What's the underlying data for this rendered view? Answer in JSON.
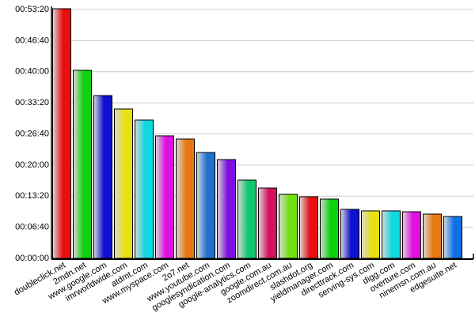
{
  "chart_data": {
    "type": "bar",
    "categories": [
      "doubleclick.net",
      "2mdn.net",
      "www.google.com",
      "imrworldwide.com",
      "atdmt.com",
      "www.myspace.com",
      "2o7.net",
      "www.youtube.com",
      "googlesyndication.com",
      "google-analytics.com",
      "google.com.au",
      "zoomdirect.com.au",
      "slashdot.org",
      "yieldmanager.com",
      "directtrack.com",
      "serving-sys.com",
      "digg.com",
      "overture.com",
      "ninemsn.com.au",
      "edgesuite.net"
    ],
    "values": [
      3210,
      2418,
      2093,
      1920,
      1778,
      1575,
      1534,
      1361,
      1270,
      1006,
      904,
      823,
      792,
      762,
      630,
      610,
      610,
      599,
      569,
      538
    ],
    "colors": [
      "#e81010",
      "#10d010",
      "#1010d0",
      "#e8e010",
      "#10d8e0",
      "#e010e0",
      "#e87810",
      "#2070d0",
      "#8010e0",
      "#10c870",
      "#d81060",
      "#70e010",
      "#e81010",
      "#10d010",
      "#1010d0",
      "#e8e010",
      "#10d8e0",
      "#e010e0",
      "#e87810",
      "#1070e8"
    ],
    "ylim": [
      0,
      3200
    ],
    "yticks": [
      {
        "value": 0,
        "label": "00:00:00"
      },
      {
        "value": 400,
        "label": "00:06:40"
      },
      {
        "value": 800,
        "label": "00:13:20"
      },
      {
        "value": 1200,
        "label": "00:20:00"
      },
      {
        "value": 1600,
        "label": "00:26:40"
      },
      {
        "value": 2000,
        "label": "00:33:20"
      },
      {
        "value": 2400,
        "label": "00:40:00"
      },
      {
        "value": 2800,
        "label": "00:46:40"
      },
      {
        "value": 3200,
        "label": "00:53:20"
      }
    ],
    "grid": true
  }
}
